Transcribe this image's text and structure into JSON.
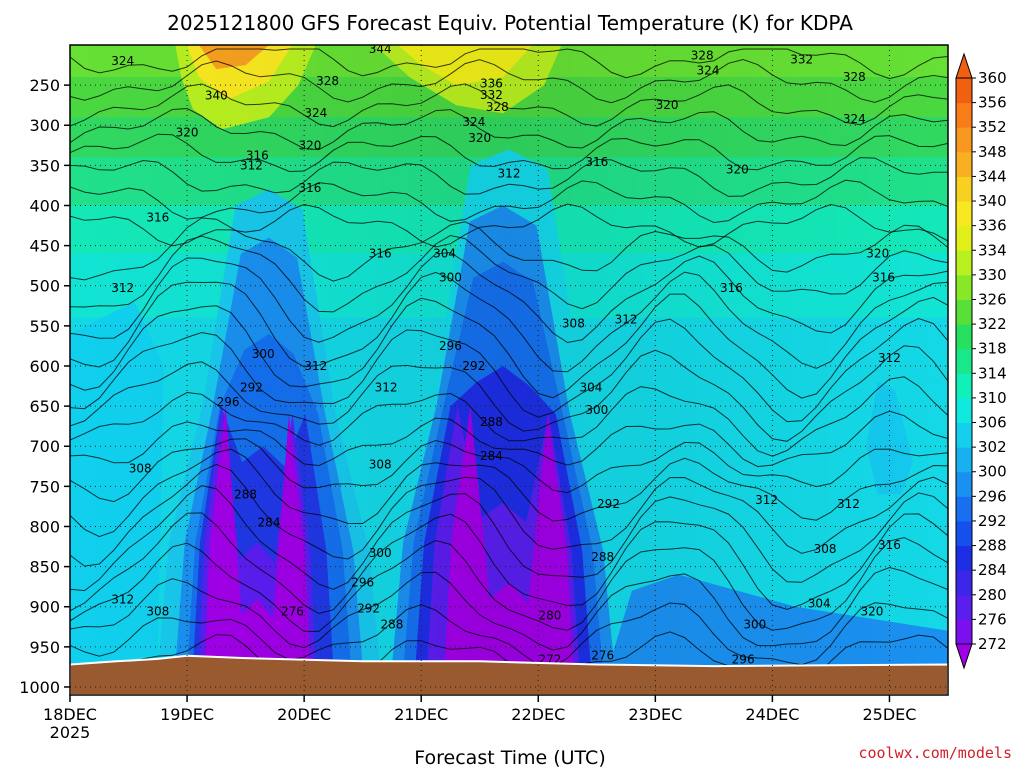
{
  "chart_data": {
    "type": "heatmap",
    "title": "2025121800 GFS Forecast Equiv. Potential Temperature (K) for KDPA",
    "xlabel": "Forecast Time (UTC)",
    "ylabel": "",
    "x_ticks": [
      "18DEC",
      "19DEC",
      "20DEC",
      "21DEC",
      "22DEC",
      "23DEC",
      "24DEC",
      "25DEC"
    ],
    "x_tick_year": "2025",
    "y_ticks": [
      "250",
      "300",
      "350",
      "400",
      "450",
      "500",
      "550",
      "600",
      "650",
      "700",
      "750",
      "800",
      "850",
      "900",
      "950",
      "1000"
    ],
    "x_range_days": [
      0,
      7.5
    ],
    "y_range_hpa": [
      200,
      1010
    ],
    "colorbar_levels": [
      272,
      276,
      280,
      284,
      288,
      292,
      296,
      300,
      302,
      306,
      310,
      314,
      318,
      322,
      326,
      330,
      334,
      336,
      340,
      344,
      348,
      352,
      356,
      360
    ],
    "colorbar_colors": [
      "#a000e8",
      "#7a10ee",
      "#5a1ef0",
      "#3c26e8",
      "#1e2ee6",
      "#1550ec",
      "#1870f0",
      "#1a90f0",
      "#18b0f0",
      "#14d0ee",
      "#10e8e0",
      "#10f0b8",
      "#18e88a",
      "#28e060",
      "#58e038",
      "#88e828",
      "#b8f020",
      "#e0f018",
      "#f8e820",
      "#f8d020",
      "#f8b020",
      "#f89820",
      "#f87c18",
      "#f06010"
    ],
    "contour_labels": [
      {
        "value": "324",
        "day": 0.45,
        "p": 220
      },
      {
        "value": "344",
        "day": 2.65,
        "p": 205
      },
      {
        "value": "328",
        "day": 5.4,
        "p": 213
      },
      {
        "value": "332",
        "day": 6.25,
        "p": 218
      },
      {
        "value": "324",
        "day": 5.45,
        "p": 232
      },
      {
        "value": "328",
        "day": 6.7,
        "p": 240
      },
      {
        "value": "328",
        "day": 2.2,
        "p": 245
      },
      {
        "value": "336",
        "day": 3.6,
        "p": 248
      },
      {
        "value": "332",
        "day": 3.6,
        "p": 262
      },
      {
        "value": "328",
        "day": 3.65,
        "p": 277
      },
      {
        "value": "340",
        "day": 1.25,
        "p": 263
      },
      {
        "value": "320",
        "day": 5.1,
        "p": 275
      },
      {
        "value": "324",
        "day": 2.1,
        "p": 285
      },
      {
        "value": "324",
        "day": 6.7,
        "p": 292
      },
      {
        "value": "324",
        "day": 3.45,
        "p": 296
      },
      {
        "value": "320",
        "day": 1.0,
        "p": 309
      },
      {
        "value": "320",
        "day": 3.5,
        "p": 316
      },
      {
        "value": "320",
        "day": 2.05,
        "p": 325
      },
      {
        "value": "316",
        "day": 1.6,
        "p": 338
      },
      {
        "value": "316",
        "day": 4.5,
        "p": 346
      },
      {
        "value": "312",
        "day": 1.55,
        "p": 350
      },
      {
        "value": "320",
        "day": 5.7,
        "p": 355
      },
      {
        "value": "312",
        "day": 3.75,
        "p": 360
      },
      {
        "value": "316",
        "day": 2.05,
        "p": 378
      },
      {
        "value": "316",
        "day": 0.75,
        "p": 415
      },
      {
        "value": "316",
        "day": 2.65,
        "p": 460
      },
      {
        "value": "304",
        "day": 3.2,
        "p": 460
      },
      {
        "value": "320",
        "day": 6.9,
        "p": 460
      },
      {
        "value": "300",
        "day": 3.25,
        "p": 490
      },
      {
        "value": "312",
        "day": 0.45,
        "p": 503
      },
      {
        "value": "316",
        "day": 5.65,
        "p": 503
      },
      {
        "value": "316",
        "day": 6.95,
        "p": 490
      },
      {
        "value": "308",
        "day": 4.3,
        "p": 547
      },
      {
        "value": "312",
        "day": 4.75,
        "p": 542
      },
      {
        "value": "296",
        "day": 3.25,
        "p": 575
      },
      {
        "value": "300",
        "day": 1.65,
        "p": 585
      },
      {
        "value": "312",
        "day": 7.0,
        "p": 590
      },
      {
        "value": "312",
        "day": 2.1,
        "p": 600
      },
      {
        "value": "292",
        "day": 3.45,
        "p": 600
      },
      {
        "value": "312",
        "day": 2.7,
        "p": 627
      },
      {
        "value": "304",
        "day": 4.45,
        "p": 627
      },
      {
        "value": "292",
        "day": 1.55,
        "p": 627
      },
      {
        "value": "296",
        "day": 1.35,
        "p": 645
      },
      {
        "value": "300",
        "day": 4.5,
        "p": 655
      },
      {
        "value": "288",
        "day": 3.6,
        "p": 670
      },
      {
        "value": "284",
        "day": 3.6,
        "p": 712
      },
      {
        "value": "308",
        "day": 0.6,
        "p": 728
      },
      {
        "value": "308",
        "day": 2.65,
        "p": 723
      },
      {
        "value": "288",
        "day": 1.5,
        "p": 760
      },
      {
        "value": "312",
        "day": 5.95,
        "p": 767
      },
      {
        "value": "292",
        "day": 4.6,
        "p": 772
      },
      {
        "value": "312",
        "day": 6.65,
        "p": 772
      },
      {
        "value": "284",
        "day": 1.7,
        "p": 795
      },
      {
        "value": "308",
        "day": 6.45,
        "p": 828
      },
      {
        "value": "316",
        "day": 7.0,
        "p": 823
      },
      {
        "value": "300",
        "day": 2.65,
        "p": 833
      },
      {
        "value": "288",
        "day": 4.55,
        "p": 838
      },
      {
        "value": "296",
        "day": 2.5,
        "p": 870
      },
      {
        "value": "312",
        "day": 0.45,
        "p": 891
      },
      {
        "value": "304",
        "day": 6.4,
        "p": 896
      },
      {
        "value": "308",
        "day": 0.75,
        "p": 906
      },
      {
        "value": "292",
        "day": 2.55,
        "p": 902
      },
      {
        "value": "276",
        "day": 1.9,
        "p": 906
      },
      {
        "value": "320",
        "day": 6.85,
        "p": 906
      },
      {
        "value": "280",
        "day": 4.1,
        "p": 911
      },
      {
        "value": "288",
        "day": 2.75,
        "p": 922
      },
      {
        "value": "300",
        "day": 5.85,
        "p": 922
      },
      {
        "value": "272",
        "day": 4.1,
        "p": 966
      },
      {
        "value": "276",
        "day": 4.55,
        "p": 961
      },
      {
        "value": "296",
        "day": 5.75,
        "p": 966
      }
    ]
  },
  "credit": "coolwx.com/models"
}
